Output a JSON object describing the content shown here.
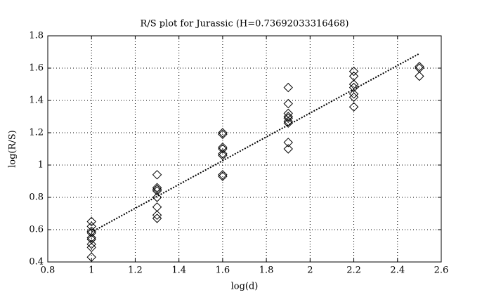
{
  "chart_data": {
    "type": "scatter",
    "title": "R/S plot for Jurassic (H=0.73692033316468)",
    "x_label": "log(d)",
    "y_label": "log(R/S)",
    "x": [
      1,
      1,
      1,
      1,
      1,
      1,
      1,
      1,
      1,
      1.3,
      1.3,
      1.3,
      1.3,
      1.3,
      1.3,
      1.3,
      1.3,
      1.6,
      1.6,
      1.6,
      1.6,
      1.6,
      1.6,
      1.6,
      1.6,
      1.9,
      1.9,
      1.9,
      1.9,
      1.9,
      1.9,
      1.9,
      1.9,
      1.9,
      2.2,
      2.2,
      2.2,
      2.2,
      2.2,
      2.2,
      2.2,
      2.5,
      2.5,
      2.5
    ],
    "y": [
      0.65,
      0.62,
      0.59,
      0.58,
      0.55,
      0.54,
      0.51,
      0.49,
      0.43,
      0.94,
      0.86,
      0.85,
      0.84,
      0.8,
      0.74,
      0.69,
      0.67,
      1.2,
      1.19,
      1.11,
      1.1,
      1.07,
      1.06,
      0.94,
      0.93,
      1.48,
      1.38,
      1.32,
      1.3,
      1.29,
      1.27,
      1.26,
      1.14,
      1.1,
      1.58,
      1.55,
      1.5,
      1.48,
      1.44,
      1.42,
      1.36,
      1.61,
      1.6,
      1.55
    ],
    "marker": "diamond",
    "color": "#000000",
    "fit_line": {
      "x": [
        1,
        2.5
      ],
      "y": [
        0.585,
        1.69
      ],
      "style": "dotted"
    },
    "xlim": [
      0.8,
      2.6
    ],
    "xticks": [
      0.8,
      1,
      1.2,
      1.4,
      1.6,
      1.8,
      2,
      2.2,
      2.4,
      2.6
    ],
    "ylim": [
      0.4,
      1.8
    ],
    "yticks": [
      0.4,
      0.6,
      0.8,
      1,
      1.2,
      1.4,
      1.6,
      1.8
    ],
    "grid": true
  }
}
